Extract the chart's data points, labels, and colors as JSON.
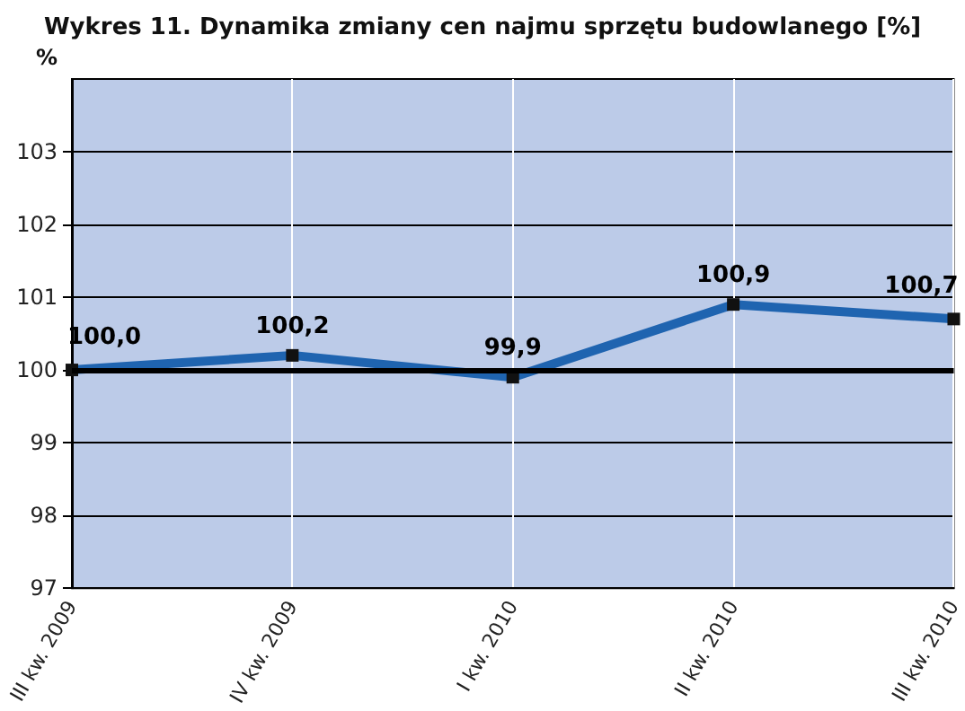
{
  "chart_data": {
    "type": "line",
    "title": "Wykres 11. Dynamika zmiany cen najmu sprzętu budowlanego [%]",
    "ylabel": "%",
    "categories": [
      "III kw. 2009",
      "IV kw. 2009",
      "I kw. 2010",
      "II kw. 2010",
      "III kw. 2010"
    ],
    "series": [
      {
        "color": "#1f64b0",
        "values": [
          100.0,
          100.2,
          99.9,
          100.9,
          100.7
        ],
        "value_labels": [
          "100,0",
          "100,2",
          "99,9",
          "100,9",
          "100,7"
        ]
      }
    ],
    "ylim": [
      97,
      104
    ],
    "yticks": [
      97,
      98,
      99,
      100,
      101,
      102,
      103
    ],
    "ref_lines": [
      {
        "axis": "y",
        "value": 100,
        "color": "#000000"
      }
    ],
    "grid": true,
    "marker": "square",
    "line_style": "solid"
  }
}
